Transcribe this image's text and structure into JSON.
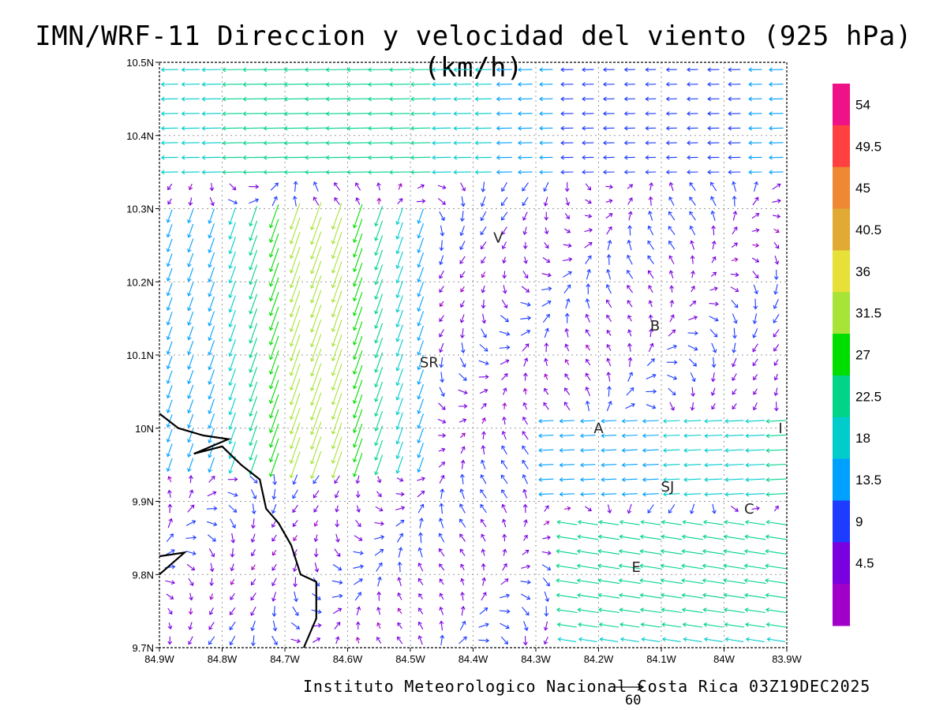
{
  "title": "IMN/WRF-11 Direccion y velocidad del viento (925 hPa)(km/h)",
  "credit": "Instituto Meteorologico Nacional Costa Rica 03Z19DEC2025",
  "reference_vector": {
    "value": "60"
  },
  "map": {
    "lon_labels": [
      "84.9W",
      "84.8W",
      "84.7W",
      "84.6W",
      "84.5W",
      "84.4W",
      "84.3W",
      "84.2W",
      "84.1W",
      "84W",
      "83.9W"
    ],
    "lat_labels": [
      "10.5N",
      "10.4N",
      "10.3N",
      "10.2N",
      "10.1N",
      "10N",
      "9.9N",
      "9.8N",
      "9.7N"
    ],
    "lon_range": [
      -84.9,
      -83.9
    ],
    "lat_range": [
      9.7,
      10.5
    ],
    "grid": "dotted",
    "coastline_color": "#000000",
    "cities": [
      {
        "name": "V",
        "lon": -84.36,
        "lat": 10.26
      },
      {
        "name": "B",
        "lon": -84.11,
        "lat": 10.14
      },
      {
        "name": "SR",
        "lon": -84.47,
        "lat": 10.09
      },
      {
        "name": "A",
        "lon": -84.2,
        "lat": 10.0
      },
      {
        "name": "I",
        "lon": -83.91,
        "lat": 10.0
      },
      {
        "name": "SJ",
        "lon": -84.09,
        "lat": 9.92
      },
      {
        "name": "C",
        "lon": -83.96,
        "lat": 9.89
      },
      {
        "name": "E",
        "lon": -84.14,
        "lat": 9.81
      }
    ]
  },
  "colorbar": {
    "labels": [
      "54",
      "49.5",
      "45",
      "40.5",
      "36",
      "31.5",
      "27",
      "22.5",
      "18",
      "13.5",
      "9",
      "4.5"
    ],
    "colors": [
      "#ee1188",
      "#ff4040",
      "#ee8833",
      "#e0aa33",
      "#e6e038",
      "#a8e338",
      "#00dd00",
      "#00d488",
      "#00cccc",
      "#00a0ff",
      "#1e3cff",
      "#7a00e0",
      "#a000c8"
    ]
  }
}
